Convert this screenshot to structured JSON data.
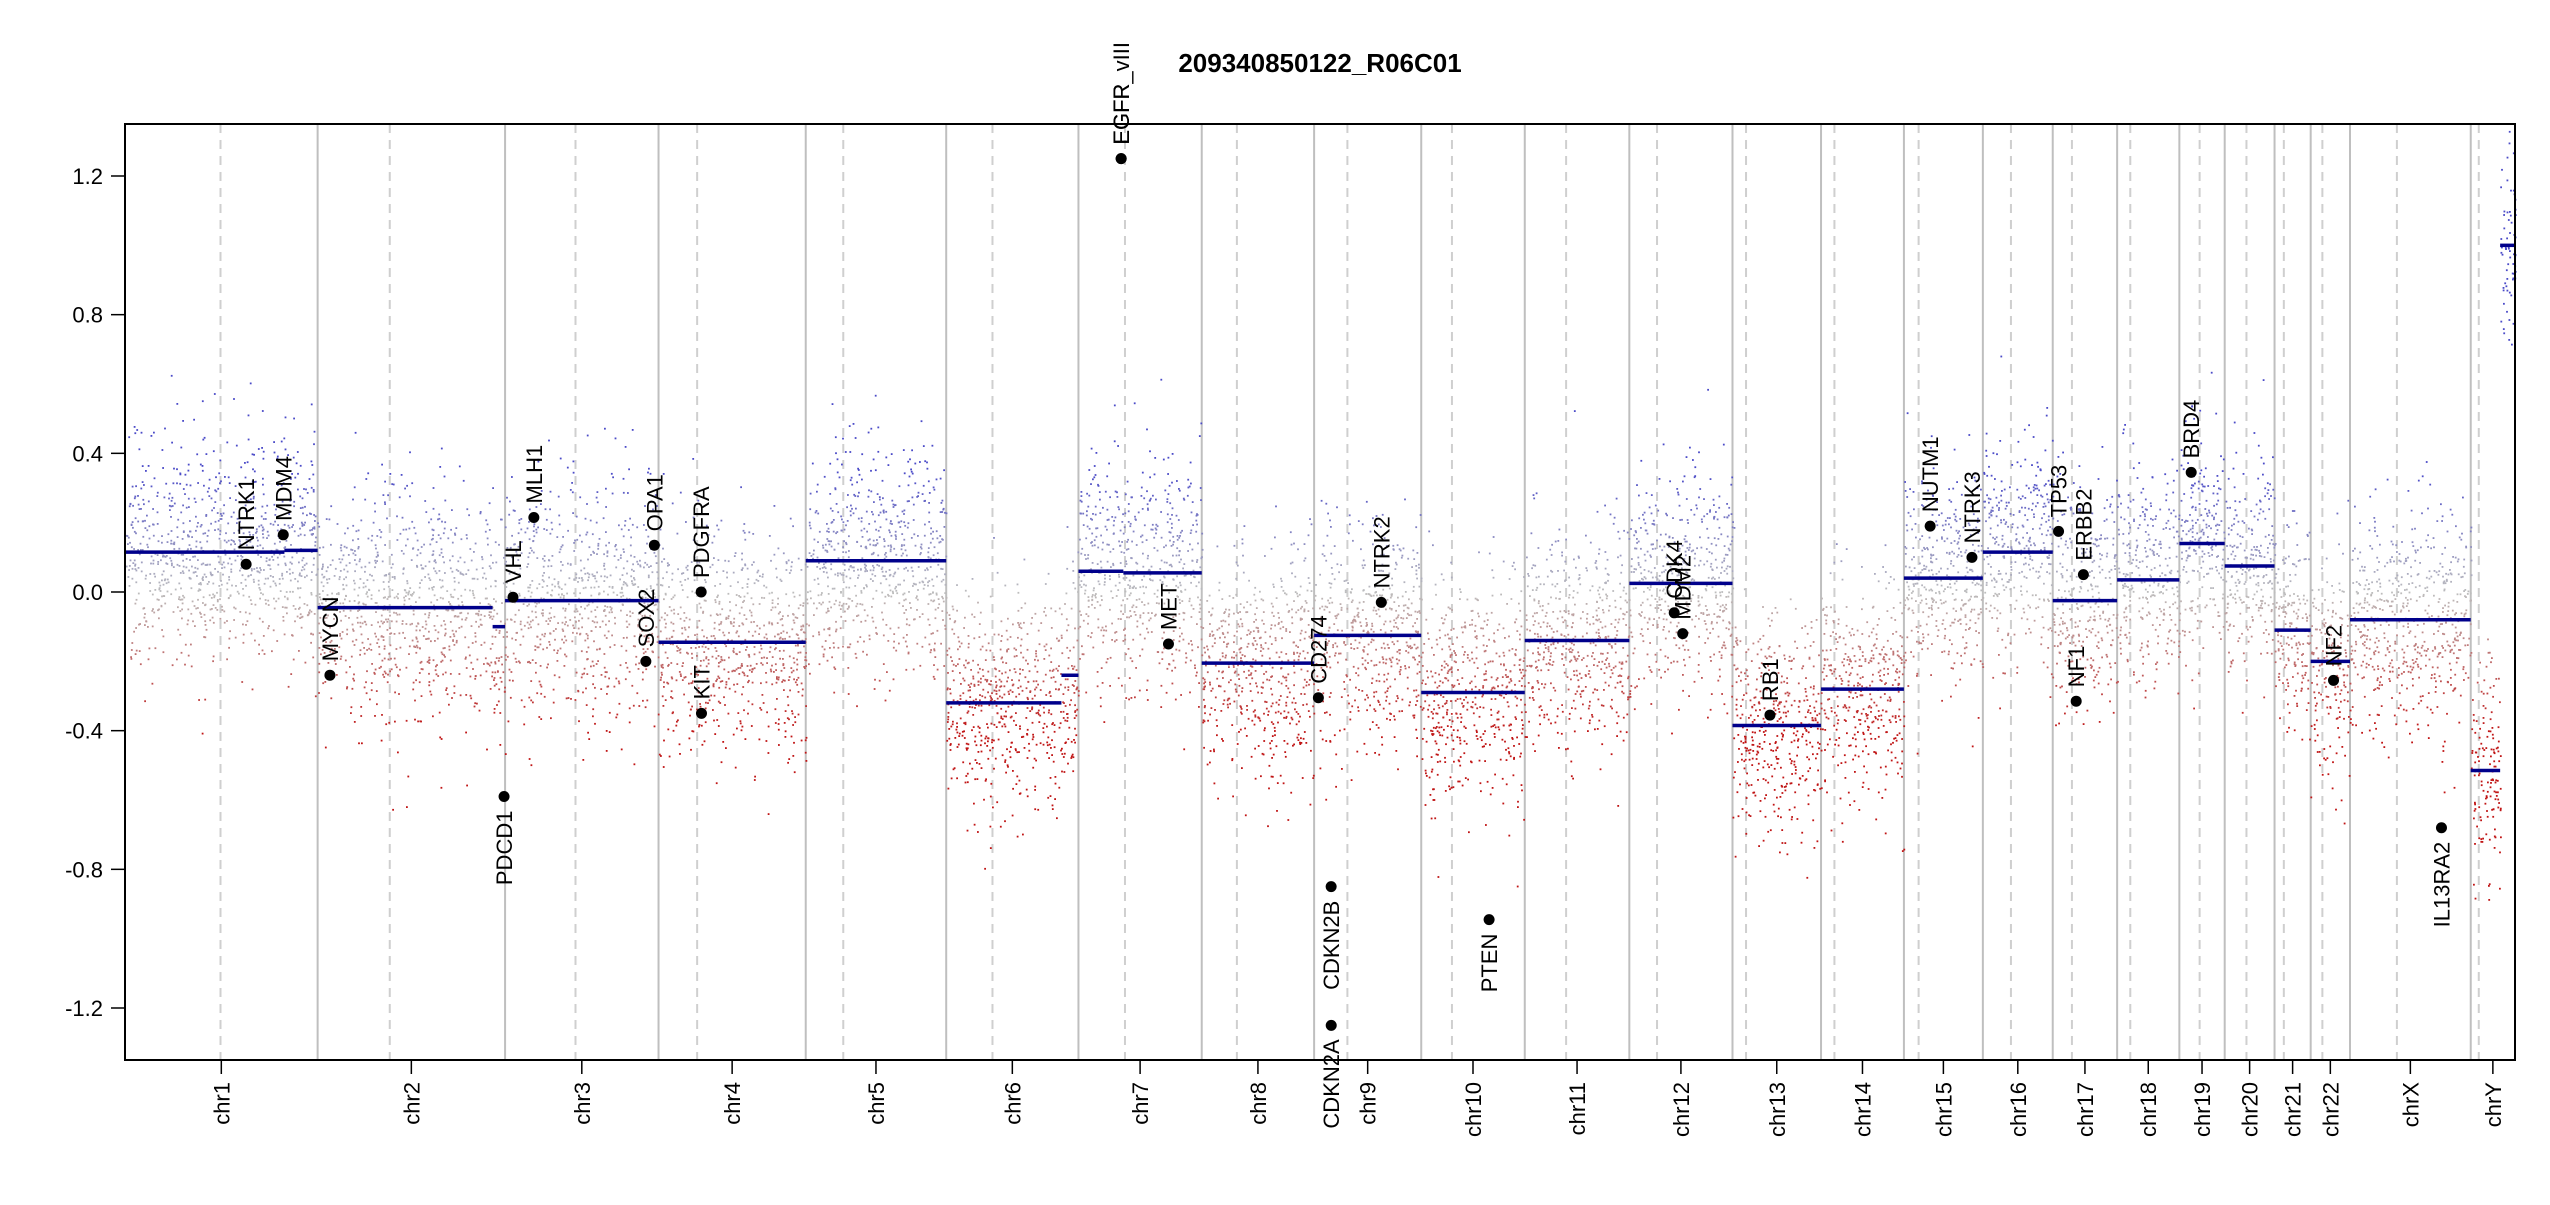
{
  "chart_data": {
    "type": "scatter",
    "title": "209340850122_R06C01",
    "xlabel": "",
    "ylabel": "",
    "ylim": [
      -1.35,
      1.35
    ],
    "y_ticks": [
      "1.2",
      "0.8",
      "0.4",
      "0.0",
      "-0.4",
      "-0.8",
      "-1.2"
    ],
    "y_tick_values": [
      1.2,
      0.8,
      0.4,
      0.0,
      -0.4,
      -0.8,
      -1.2
    ],
    "grid": false,
    "colors": {
      "gain": "#4b4bc8",
      "neutral": "#bdbdbd",
      "loss": "#c01515",
      "segment": "#00008b",
      "gene_marker": "#000000",
      "chrom_border": "#bfbfbf",
      "centromere": "#cfcfcf"
    },
    "chromosomes": [
      {
        "name": "chr1",
        "start": 0,
        "end": 248.9,
        "centromere": 123.4
      },
      {
        "name": "chr2",
        "start": 248.9,
        "end": 491.1,
        "centromere": 342.1
      },
      {
        "name": "chr3",
        "start": 491.1,
        "end": 689.4,
        "centromere": 582.1
      },
      {
        "name": "chr4",
        "start": 689.4,
        "end": 879.6,
        "centromere": 739.3
      },
      {
        "name": "chr5",
        "start": 879.6,
        "end": 1061.1,
        "centromere": 928.1
      },
      {
        "name": "chr6",
        "start": 1061.1,
        "end": 1232.0,
        "centromere": 1120.9
      },
      {
        "name": "chr7",
        "start": 1232.0,
        "end": 1391.3,
        "centromere": 1292.1
      },
      {
        "name": "chr8",
        "start": 1391.3,
        "end": 1536.5,
        "centromere": 1436.7
      },
      {
        "name": "chr9",
        "start": 1536.5,
        "end": 1674.9,
        "centromere": 1579.5
      },
      {
        "name": "chr10",
        "start": 1674.9,
        "end": 1808.7,
        "centromere": 1714.6
      },
      {
        "name": "chr11",
        "start": 1808.7,
        "end": 1943.8,
        "centromere": 1862.1
      },
      {
        "name": "chr12",
        "start": 1943.8,
        "end": 2077.1,
        "centromere": 1979.6
      },
      {
        "name": "chr13",
        "start": 2077.1,
        "end": 2191.5,
        "centromere": 2094.6
      },
      {
        "name": "chr14",
        "start": 2191.5,
        "end": 2298.6,
        "centromere": 2208.8
      },
      {
        "name": "chr15",
        "start": 2298.6,
        "end": 2400.6,
        "centromere": 2317.6
      },
      {
        "name": "chr16",
        "start": 2400.6,
        "end": 2490.9,
        "centromere": 2436.9
      },
      {
        "name": "chr17",
        "start": 2490.9,
        "end": 2574.1,
        "centromere": 2515.7
      },
      {
        "name": "chr18",
        "start": 2574.1,
        "end": 2654.5,
        "centromere": 2591.1
      },
      {
        "name": "chr19",
        "start": 2654.5,
        "end": 2713.1,
        "centromere": 2680.7
      },
      {
        "name": "chr20",
        "start": 2713.1,
        "end": 2777.5,
        "centromere": 2741.2
      },
      {
        "name": "chr21",
        "start": 2777.5,
        "end": 2824.2,
        "centromere": 2789.5
      },
      {
        "name": "chr22",
        "start": 2824.2,
        "end": 2875.0,
        "centromere": 2839.3
      },
      {
        "name": "chrX",
        "start": 2875.0,
        "end": 3031.0,
        "centromere": 2935.6
      },
      {
        "name": "chrY",
        "start": 3031.0,
        "end": 3088.2,
        "centromere": 3041.4
      }
    ],
    "segments": [
      {
        "chrom": "chr1",
        "x0": 0,
        "x1": 206,
        "y": 0.115
      },
      {
        "chrom": "chr1",
        "x0": 206,
        "x1": 248.9,
        "y": 0.12
      },
      {
        "chrom": "chr2",
        "x0": 248.9,
        "x1": 475,
        "y": -0.045
      },
      {
        "chrom": "chr2",
        "x0": 475,
        "x1": 491.1,
        "y": -0.1
      },
      {
        "chrom": "chr3",
        "x0": 491.1,
        "x1": 689.4,
        "y": -0.025
      },
      {
        "chrom": "chr4",
        "x0": 689.4,
        "x1": 879.6,
        "y": -0.145
      },
      {
        "chrom": "chr5",
        "x0": 879.6,
        "x1": 1061.1,
        "y": 0.09
      },
      {
        "chrom": "chr6",
        "x0": 1061.1,
        "x1": 1210,
        "y": -0.32
      },
      {
        "chrom": "chr6",
        "x0": 1210,
        "x1": 1232.0,
        "y": -0.24
      },
      {
        "chrom": "chr7",
        "x0": 1232.0,
        "x1": 1290,
        "y": 0.06
      },
      {
        "chrom": "chr7",
        "x0": 1290,
        "x1": 1391.3,
        "y": 0.055
      },
      {
        "chrom": "chr8",
        "x0": 1391.3,
        "x1": 1536.5,
        "y": -0.205
      },
      {
        "chrom": "chr9",
        "x0": 1536.5,
        "x1": 1674.9,
        "y": -0.125
      },
      {
        "chrom": "chr10",
        "x0": 1674.9,
        "x1": 1808.7,
        "y": -0.29
      },
      {
        "chrom": "chr11",
        "x0": 1808.7,
        "x1": 1943.8,
        "y": -0.14
      },
      {
        "chrom": "chr12",
        "x0": 1943.8,
        "x1": 2077.1,
        "y": 0.025
      },
      {
        "chrom": "chr13",
        "x0": 2077.1,
        "x1": 2191.5,
        "y": -0.385
      },
      {
        "chrom": "chr14",
        "x0": 2191.5,
        "x1": 2298.6,
        "y": -0.28
      },
      {
        "chrom": "chr15",
        "x0": 2298.6,
        "x1": 2400.6,
        "y": 0.04
      },
      {
        "chrom": "chr16",
        "x0": 2400.6,
        "x1": 2490.9,
        "y": 0.115
      },
      {
        "chrom": "chr17",
        "x0": 2490.9,
        "x1": 2574.1,
        "y": -0.025
      },
      {
        "chrom": "chr18",
        "x0": 2574.1,
        "x1": 2654.5,
        "y": 0.035
      },
      {
        "chrom": "chr19",
        "x0": 2654.5,
        "x1": 2713.1,
        "y": 0.14
      },
      {
        "chrom": "chr20",
        "x0": 2713.1,
        "x1": 2777.5,
        "y": 0.075
      },
      {
        "chrom": "chr21",
        "x0": 2777.5,
        "x1": 2824.2,
        "y": -0.11
      },
      {
        "chrom": "chr22",
        "x0": 2824.2,
        "x1": 2875.0,
        "y": -0.2
      },
      {
        "chrom": "chrX",
        "x0": 2875.0,
        "x1": 3031.0,
        "y": -0.08
      },
      {
        "chrom": "chrY",
        "x0": 3031.0,
        "x1": 3069,
        "y": -0.515
      },
      {
        "chrom": "chrY",
        "x0": 3069,
        "x1": 3088.2,
        "y": 1.0
      }
    ],
    "genes": [
      {
        "name": "NTRK1",
        "x": 156.5,
        "y": 0.08
      },
      {
        "name": "MDM4",
        "x": 204.5,
        "y": 0.165
      },
      {
        "name": "MYCN",
        "x": 264.8,
        "y": -0.24
      },
      {
        "name": "PDCD1",
        "x": 489.8,
        "y": -0.59
      },
      {
        "name": "VHL",
        "x": 501.3,
        "y": -0.015
      },
      {
        "name": "MLH1",
        "x": 528.3,
        "y": 0.215
      },
      {
        "name": "SOX2",
        "x": 673.0,
        "y": -0.2
      },
      {
        "name": "OPA1",
        "x": 684.0,
        "y": 0.135
      },
      {
        "name": "PDGFRA",
        "x": 744.5,
        "y": 0.0
      },
      {
        "name": "KIT",
        "x": 744.9,
        "y": -0.35
      },
      {
        "name": "EGFR",
        "x": 1287.1,
        "y": 1.25
      },
      {
        "name": "EGFR_vIII",
        "x": 1287.2,
        "y": 1.25
      },
      {
        "name": "MET",
        "x": 1348.3,
        "y": -0.15
      },
      {
        "name": "CD274",
        "x": 1542.0,
        "y": -0.305
      },
      {
        "name": "CDKN2B",
        "x": 1558.5,
        "y": -0.85
      },
      {
        "name": "CDKN2A",
        "x": 1558.6,
        "y": -1.25
      },
      {
        "name": "NTRK2",
        "x": 1623.3,
        "y": -0.03
      },
      {
        "name": "PTEN",
        "x": 1762.6,
        "y": -0.945
      },
      {
        "name": "CDK4",
        "x": 2001.8,
        "y": -0.06
      },
      {
        "name": "MDM2",
        "x": 2012.8,
        "y": -0.12
      },
      {
        "name": "RB1",
        "x": 2125.5,
        "y": -0.355
      },
      {
        "name": "NUTM1",
        "x": 2332.5,
        "y": 0.19
      },
      {
        "name": "NTRK3",
        "x": 2386.5,
        "y": 0.1
      },
      {
        "name": "TP53",
        "x": 2498.4,
        "y": 0.175
      },
      {
        "name": "NF1",
        "x": 2521.2,
        "y": -0.315
      },
      {
        "name": "ERBB2",
        "x": 2530.5,
        "y": 0.05
      },
      {
        "name": "BRD4",
        "x": 2669.8,
        "y": 0.345
      },
      {
        "name": "NF2",
        "x": 2853.7,
        "y": -0.255
      },
      {
        "name": "IL13RA2",
        "x": 2993.2,
        "y": -0.68
      }
    ]
  }
}
